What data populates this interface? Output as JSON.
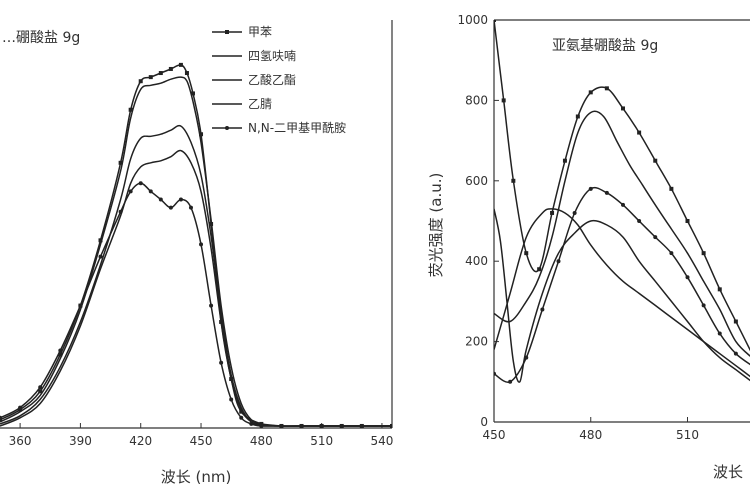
{
  "chart_data": [
    {
      "type": "line",
      "title": "…硼酸盐 9g",
      "xlabel": "波长 (nm)",
      "ylabel": "",
      "xlim": [
        350,
        545
      ],
      "ylim": [
        0,
        1000
      ],
      "xticks": [
        "360",
        "390",
        "420",
        "450",
        "480",
        "510",
        "540"
      ],
      "legend_position": "top-right",
      "series": [
        {
          "name": "甲苯",
          "marker": "square",
          "x": [
            350,
            360,
            370,
            380,
            390,
            400,
            410,
            415,
            420,
            425,
            430,
            435,
            440,
            443,
            446,
            450,
            455,
            460,
            465,
            470,
            480,
            490,
            500,
            510,
            520,
            530,
            545
          ],
          "y": [
            20,
            45,
            90,
            180,
            300,
            460,
            650,
            780,
            850,
            860,
            870,
            880,
            890,
            870,
            820,
            720,
            500,
            260,
            120,
            40,
            10,
            5,
            5,
            5,
            5,
            5,
            5
          ]
        },
        {
          "name": "四氢呋喃",
          "marker": "none",
          "x": [
            350,
            360,
            370,
            380,
            390,
            400,
            410,
            415,
            420,
            425,
            430,
            435,
            440,
            443,
            446,
            450,
            455,
            460,
            465,
            470,
            475,
            480,
            490,
            500,
            510,
            520,
            530,
            545
          ],
          "y": [
            15,
            40,
            80,
            170,
            290,
            450,
            630,
            760,
            830,
            840,
            845,
            855,
            860,
            850,
            800,
            700,
            510,
            300,
            150,
            60,
            20,
            10,
            5,
            5,
            5,
            5,
            5,
            5
          ]
        },
        {
          "name": "乙酸乙酯",
          "marker": "none",
          "x": [
            350,
            360,
            370,
            380,
            390,
            400,
            410,
            415,
            420,
            425,
            430,
            435,
            440,
            445,
            450,
            455,
            460,
            465,
            470,
            475,
            480,
            490,
            500,
            510,
            520,
            530,
            545
          ],
          "y": [
            10,
            30,
            70,
            150,
            260,
            400,
            560,
            660,
            710,
            715,
            720,
            730,
            740,
            700,
            620,
            470,
            280,
            130,
            50,
            15,
            8,
            5,
            5,
            5,
            5,
            5,
            5
          ]
        },
        {
          "name": "乙腈",
          "marker": "none",
          "x": [
            350,
            360,
            370,
            380,
            390,
            400,
            410,
            415,
            420,
            425,
            430,
            435,
            440,
            445,
            450,
            455,
            460,
            465,
            470,
            475,
            480,
            490,
            500,
            510,
            520,
            530,
            545
          ],
          "y": [
            5,
            25,
            60,
            140,
            250,
            390,
            520,
            600,
            640,
            650,
            655,
            665,
            680,
            650,
            580,
            440,
            260,
            120,
            45,
            15,
            8,
            5,
            5,
            5,
            5,
            5,
            5
          ]
        },
        {
          "name": "N,N-二甲基甲酰胺",
          "marker": "circle",
          "x": [
            350,
            360,
            370,
            380,
            390,
            400,
            410,
            415,
            420,
            425,
            430,
            435,
            440,
            445,
            450,
            455,
            460,
            465,
            470,
            475,
            480,
            490,
            500,
            510,
            520,
            530,
            545
          ],
          "y": [
            25,
            50,
            100,
            190,
            300,
            420,
            530,
            580,
            600,
            580,
            560,
            540,
            560,
            540,
            450,
            300,
            160,
            70,
            25,
            10,
            5,
            5,
            5,
            5,
            5,
            5,
            5
          ]
        }
      ]
    },
    {
      "type": "line",
      "title": "亚氨基硼酸盐 9g",
      "xlabel": "波长",
      "ylabel": "荧光强度 (a.u.)",
      "xlim": [
        450,
        530
      ],
      "ylim": [
        0,
        1000
      ],
      "xticks": [
        "450",
        "480",
        "510"
      ],
      "yticks": [
        "0",
        "200",
        "400",
        "600",
        "800",
        "1000"
      ],
      "series": [
        {
          "name": "",
          "marker": "square",
          "x": [
            450,
            453,
            456,
            460,
            464,
            468,
            472,
            476,
            480,
            485,
            490,
            495,
            500,
            505,
            510,
            515,
            520,
            525,
            530
          ],
          "y": [
            1000,
            800,
            600,
            420,
            380,
            520,
            650,
            760,
            820,
            830,
            780,
            720,
            650,
            580,
            500,
            420,
            330,
            250,
            170
          ]
        },
        {
          "name": "",
          "marker": "none",
          "x": [
            450,
            455,
            460,
            464,
            468,
            472,
            476,
            480,
            484,
            488,
            492,
            496,
            500,
            505,
            510,
            515,
            520,
            525,
            530
          ],
          "y": [
            270,
            250,
            300,
            360,
            460,
            600,
            720,
            770,
            760,
            700,
            640,
            590,
            540,
            480,
            420,
            350,
            280,
            200,
            160
          ]
        },
        {
          "name": "",
          "marker": "circle",
          "x": [
            450,
            455,
            460,
            465,
            470,
            475,
            480,
            485,
            490,
            495,
            500,
            505,
            510,
            515,
            520,
            525,
            530
          ],
          "y": [
            120,
            100,
            160,
            280,
            400,
            520,
            580,
            570,
            540,
            500,
            460,
            420,
            360,
            290,
            220,
            170,
            140
          ]
        },
        {
          "name": "",
          "marker": "none",
          "x": [
            450,
            455,
            460,
            465,
            468,
            472,
            476,
            480,
            485,
            490,
            495,
            500,
            505,
            510,
            515,
            520,
            525,
            530
          ],
          "y": [
            180,
            320,
            460,
            520,
            530,
            520,
            490,
            440,
            390,
            350,
            320,
            290,
            260,
            230,
            200,
            170,
            140,
            110
          ]
        },
        {
          "name": "",
          "marker": "none",
          "x": [
            450,
            452,
            454,
            456,
            458,
            460,
            465,
            470,
            475,
            480,
            485,
            490,
            495,
            500,
            505,
            510,
            515,
            520,
            525,
            530
          ],
          "y": [
            530,
            450,
            300,
            150,
            100,
            180,
            320,
            420,
            470,
            500,
            490,
            460,
            400,
            350,
            300,
            250,
            200,
            160,
            130,
            100
          ]
        }
      ]
    }
  ]
}
